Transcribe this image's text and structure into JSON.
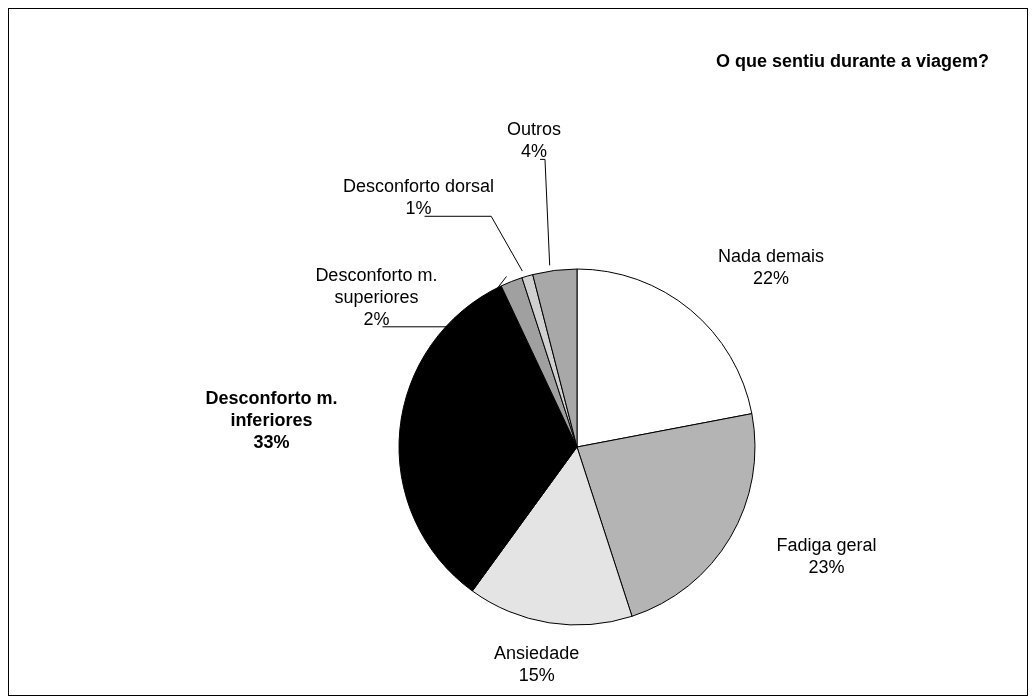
{
  "chart_data": {
    "type": "pie",
    "title": "O que sentiu durante a viagem?",
    "categories": [
      "Nada demais",
      "Fadiga geral",
      "Ansiedade",
      "Desconforto m. inferiores",
      "Desconforto m. superiores",
      "Desconforto dorsal",
      "Outros"
    ],
    "values": [
      22,
      23,
      15,
      33,
      2,
      1,
      4
    ],
    "value_labels": [
      "22%",
      "23%",
      "15%",
      "33%",
      "2%",
      "1%",
      "4%"
    ],
    "colors": [
      "#ffffff",
      "#b4b4b4",
      "#e4e4e4",
      "#000000",
      "#a0a0a0",
      "#d0d0d0",
      "#a8a8a8"
    ],
    "legend": false
  }
}
